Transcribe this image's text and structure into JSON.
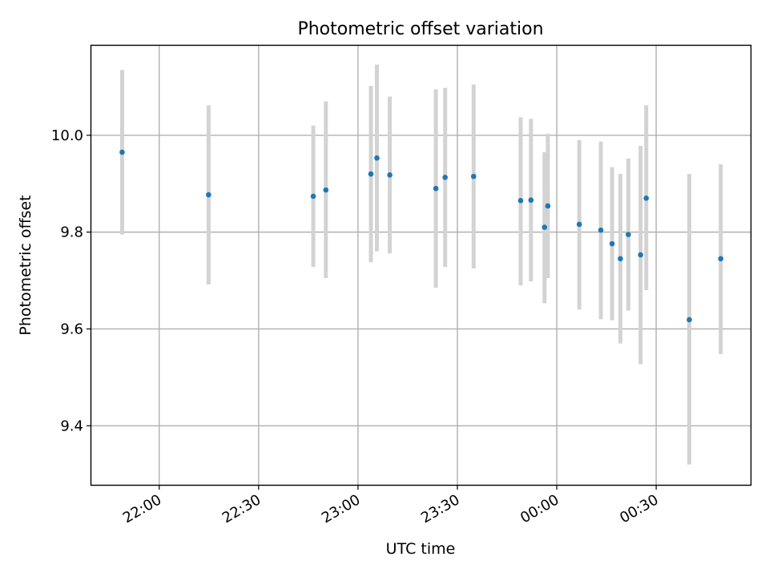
{
  "chart_data": {
    "type": "scatter",
    "title": "Photometric offset variation",
    "xlabel": "UTC time",
    "ylabel": "Photometric offset",
    "x_ticks": [
      {
        "minutes": 1320,
        "label": "22:00"
      },
      {
        "minutes": 1350,
        "label": "22:30"
      },
      {
        "minutes": 1380,
        "label": "23:00"
      },
      {
        "minutes": 1410,
        "label": "23:30"
      },
      {
        "minutes": 1440,
        "label": "00:00"
      },
      {
        "minutes": 1470,
        "label": "00:30"
      }
    ],
    "y_ticks": [
      9.4,
      9.6,
      9.8,
      10.0
    ],
    "xlim_minutes": [
      1299.5,
      1498.5
    ],
    "ylim": [
      9.278,
      10.185
    ],
    "grid": true,
    "colors": {
      "point": "#1f77b4",
      "errorbar": "#d3d3d3",
      "grid": "#b0b0b0"
    },
    "series": [
      {
        "points": [
          {
            "t": 1308.8,
            "y": 9.965,
            "ylo": 9.795,
            "yhi": 10.135
          },
          {
            "t": 1334.9,
            "y": 9.877,
            "ylo": 9.692,
            "yhi": 10.062
          },
          {
            "t": 1366.5,
            "y": 9.874,
            "ylo": 9.728,
            "yhi": 10.02
          },
          {
            "t": 1370.3,
            "y": 9.887,
            "ylo": 9.705,
            "yhi": 10.07
          },
          {
            "t": 1383.9,
            "y": 9.92,
            "ylo": 9.738,
            "yhi": 10.102
          },
          {
            "t": 1385.7,
            "y": 9.953,
            "ylo": 9.76,
            "yhi": 10.146
          },
          {
            "t": 1389.6,
            "y": 9.918,
            "ylo": 9.756,
            "yhi": 10.08
          },
          {
            "t": 1403.5,
            "y": 9.89,
            "ylo": 9.685,
            "yhi": 10.095
          },
          {
            "t": 1406.3,
            "y": 9.913,
            "ylo": 9.728,
            "yhi": 10.098
          },
          {
            "t": 1414.9,
            "y": 9.915,
            "ylo": 9.725,
            "yhi": 10.105
          },
          {
            "t": 1429.1,
            "y": 9.865,
            "ylo": 9.69,
            "yhi": 10.037
          },
          {
            "t": 1432.2,
            "y": 9.866,
            "ylo": 9.698,
            "yhi": 10.034
          },
          {
            "t": 1436.3,
            "y": 9.81,
            "ylo": 9.653,
            "yhi": 9.965
          },
          {
            "t": 1437.3,
            "y": 9.854,
            "ylo": 9.705,
            "yhi": 10.003
          },
          {
            "t": 1446.8,
            "y": 9.816,
            "ylo": 9.64,
            "yhi": 9.99
          },
          {
            "t": 1453.3,
            "y": 9.804,
            "ylo": 9.62,
            "yhi": 9.987
          },
          {
            "t": 1456.7,
            "y": 9.776,
            "ylo": 9.618,
            "yhi": 9.934
          },
          {
            "t": 1459.2,
            "y": 9.745,
            "ylo": 9.57,
            "yhi": 9.92
          },
          {
            "t": 1461.6,
            "y": 9.795,
            "ylo": 9.638,
            "yhi": 9.952
          },
          {
            "t": 1465.3,
            "y": 9.753,
            "ylo": 9.527,
            "yhi": 9.978
          },
          {
            "t": 1467.0,
            "y": 9.87,
            "ylo": 9.68,
            "yhi": 10.062
          },
          {
            "t": 1480.0,
            "y": 9.619,
            "ylo": 9.32,
            "yhi": 9.92
          },
          {
            "t": 1489.5,
            "y": 9.745,
            "ylo": 9.548,
            "yhi": 9.94
          }
        ]
      }
    ]
  }
}
